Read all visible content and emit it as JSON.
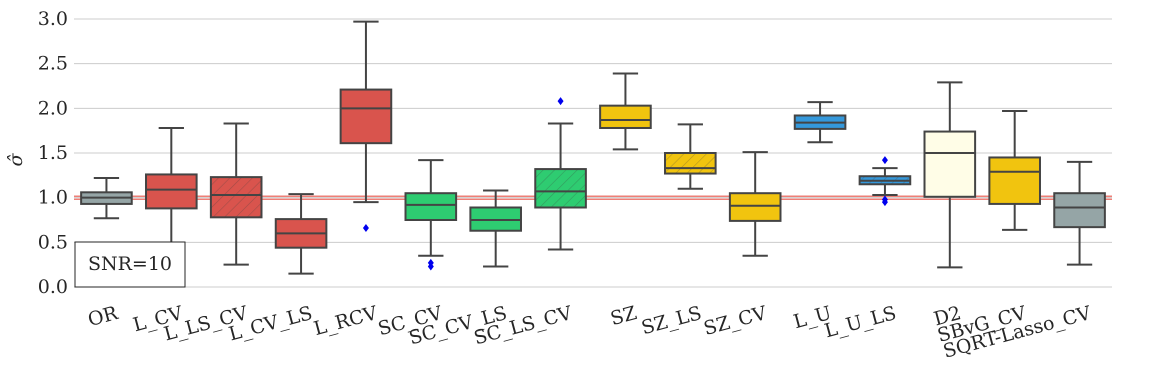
{
  "chart_data": {
    "type": "box",
    "ylabel": "σ̂",
    "ylim": [
      0,
      3.0
    ],
    "yticks": [
      "0.0",
      "0.5",
      "1.0",
      "1.5",
      "2.0",
      "2.5",
      "3.0"
    ],
    "grid": "horizontal",
    "reference_line": 1.0,
    "reference_color": "#e8554a",
    "annotation": "SNR=10",
    "categories": [
      "OR",
      "L_CV",
      "L_LS_CV",
      "L_CV_LS",
      "L_RCV",
      "SC_CV",
      "SC_CV_LS",
      "SC_LS_CV",
      "SZ",
      "SZ_LS",
      "SZ_CV",
      "L_U",
      "L_U_LS",
      "D2",
      "SBvG_CV",
      "SQRT-Lasso_CV"
    ],
    "boxes": [
      {
        "whisker_low": 0.77,
        "q1": 0.93,
        "median": 1.0,
        "q3": 1.06,
        "whisker_high": 1.22,
        "outliers": [],
        "color": "#95a5a6",
        "hatch": false
      },
      {
        "whisker_low": 0.49,
        "q1": 0.88,
        "median": 1.09,
        "q3": 1.26,
        "whisker_high": 1.78,
        "outliers": [],
        "color": "#d9544d",
        "hatch": false
      },
      {
        "whisker_low": 0.25,
        "q1": 0.78,
        "median": 1.03,
        "q3": 1.23,
        "whisker_high": 1.83,
        "outliers": [],
        "color": "#d9544d",
        "hatch": true
      },
      {
        "whisker_low": 0.15,
        "q1": 0.44,
        "median": 0.6,
        "q3": 0.76,
        "whisker_high": 1.04,
        "outliers": [],
        "color": "#d9544d",
        "hatch": false
      },
      {
        "whisker_low": 0.95,
        "q1": 1.61,
        "median": 2.0,
        "q3": 2.21,
        "whisker_high": 2.97,
        "outliers": [
          0.66
        ],
        "color": "#d9544d",
        "hatch": false
      },
      {
        "whisker_low": 0.35,
        "q1": 0.75,
        "median": 0.92,
        "q3": 1.05,
        "whisker_high": 1.42,
        "outliers": [
          0.27,
          0.23
        ],
        "color": "#2ecc71",
        "hatch": false
      },
      {
        "whisker_low": 0.23,
        "q1": 0.63,
        "median": 0.75,
        "q3": 0.89,
        "whisker_high": 1.08,
        "outliers": [],
        "color": "#2ecc71",
        "hatch": false
      },
      {
        "whisker_low": 0.42,
        "q1": 0.89,
        "median": 1.07,
        "q3": 1.32,
        "whisker_high": 1.83,
        "outliers": [
          2.08
        ],
        "color": "#2ecc71",
        "hatch": true
      },
      {
        "whisker_low": 1.54,
        "q1": 1.78,
        "median": 1.87,
        "q3": 2.03,
        "whisker_high": 2.39,
        "outliers": [],
        "color": "#f1c40f",
        "hatch": false
      },
      {
        "whisker_low": 1.1,
        "q1": 1.27,
        "median": 1.33,
        "q3": 1.5,
        "whisker_high": 1.82,
        "outliers": [],
        "color": "#f1c40f",
        "hatch": true
      },
      {
        "whisker_low": 0.35,
        "q1": 0.74,
        "median": 0.91,
        "q3": 1.05,
        "whisker_high": 1.51,
        "outliers": [],
        "color": "#f1c40f",
        "hatch": false
      },
      {
        "whisker_low": 1.62,
        "q1": 1.77,
        "median": 1.84,
        "q3": 1.92,
        "whisker_high": 2.07,
        "outliers": [],
        "color": "#3498db",
        "hatch": false
      },
      {
        "whisker_low": 1.03,
        "q1": 1.15,
        "median": 1.19,
        "q3": 1.24,
        "whisker_high": 1.33,
        "outliers": [
          1.42,
          0.98,
          0.95
        ],
        "color": "#3498db",
        "hatch": true
      },
      {
        "whisker_low": 0.22,
        "q1": 1.01,
        "median": 1.5,
        "q3": 1.74,
        "whisker_high": 2.29,
        "outliers": [],
        "color": "#fffde7",
        "hatch": false
      },
      {
        "whisker_low": 0.64,
        "q1": 0.93,
        "median": 1.29,
        "q3": 1.45,
        "whisker_high": 1.97,
        "outliers": [],
        "color": "#f1c40f",
        "hatch": false
      },
      {
        "whisker_low": 0.25,
        "q1": 0.67,
        "median": 0.89,
        "q3": 1.05,
        "whisker_high": 1.4,
        "outliers": [],
        "color": "#95a5a6",
        "hatch": false
      }
    ]
  }
}
